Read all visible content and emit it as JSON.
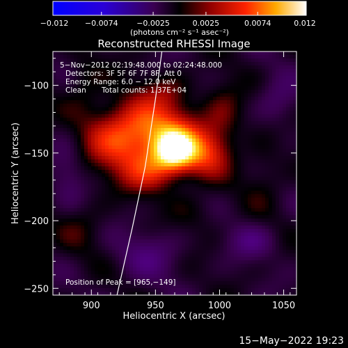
{
  "colorbar": {
    "ticks": [
      "−0.012",
      "−0.0074",
      "−0.0025",
      "0.0025",
      "0.0074",
      "0.012"
    ],
    "tick_values": [
      -0.012,
      -0.0074,
      -0.0025,
      0.0025,
      0.0074,
      0.012
    ],
    "range": [
      -0.012,
      0.012
    ],
    "units": "(photons cm⁻² s⁻¹ asec⁻²)"
  },
  "title": "Reconstructed RHESSI Image",
  "info": {
    "time": "5−Nov−2012 02:19:48.000 to 02:24:48.000",
    "detectors": "Detectors: 3F 5F 6F 7F 8F, Att 0",
    "energy": "Energy Range: 6.0 − 12.0 keV",
    "clean": "Clean",
    "counts": "Total counts: 1.37E+04"
  },
  "peak_label": "Position of Peak = [965,−149]",
  "footer_date": "15−May−2022 19:23",
  "chart_data": {
    "type": "heatmap",
    "xlabel": "Heliocentric X (arcsec)",
    "ylabel": "Heliocentric Y (arcsec)",
    "xlim": [
      870,
      1060
    ],
    "ylim": [
      -255,
      -75
    ],
    "xticks": [
      900,
      950,
      1000,
      1050
    ],
    "xtick_labels": [
      "900",
      "950",
      "1000",
      "1050"
    ],
    "yticks": [
      -100,
      -150,
      -200,
      -250
    ],
    "ytick_labels": [
      "−100",
      "−150",
      "−200",
      "−250"
    ],
    "peak": {
      "x": 965,
      "y": -149
    },
    "sources": [
      {
        "x": 965,
        "y": -149,
        "sx": 12,
        "sy": 11,
        "amp": 0.012
      },
      {
        "x": 952,
        "y": -132,
        "sx": 22,
        "sy": 16,
        "amp": 0.0065
      },
      {
        "x": 922,
        "y": -140,
        "sx": 20,
        "sy": 18,
        "amp": 0.0062
      },
      {
        "x": 990,
        "y": -150,
        "sx": 13,
        "sy": 13,
        "amp": 0.0055
      },
      {
        "x": 945,
        "y": -165,
        "sx": 15,
        "sy": 11,
        "amp": 0.0045
      },
      {
        "x": 1003,
        "y": -122,
        "sx": 11,
        "sy": 16,
        "amp": 0.003
      },
      {
        "x": 958,
        "y": -104,
        "sx": 13,
        "sy": 9,
        "amp": 0.0022
      },
      {
        "x": 895,
        "y": -96,
        "sx": 10,
        "sy": 16,
        "amp": 0.002
      },
      {
        "x": 1035,
        "y": -165,
        "sx": 11,
        "sy": 17,
        "amp": 0.0018
      },
      {
        "x": 892,
        "y": -205,
        "sx": 14,
        "sy": 13,
        "amp": 0.0017
      },
      {
        "x": 980,
        "y": -195,
        "sx": 13,
        "sy": 11,
        "amp": 0.0015
      },
      {
        "x": 1025,
        "y": -215,
        "sx": 13,
        "sy": 9,
        "amp": -0.003
      },
      {
        "x": 945,
        "y": -225,
        "sx": 18,
        "sy": 13,
        "amp": -0.0028
      },
      {
        "x": 1045,
        "y": -112,
        "sx": 11,
        "sy": 13,
        "amp": -0.0025
      },
      {
        "x": 882,
        "y": -165,
        "sx": 9,
        "sy": 20,
        "amp": -0.002
      }
    ],
    "limb": [
      [
        955,
        -75
      ],
      [
        950,
        -110
      ],
      [
        942,
        -160
      ],
      [
        932,
        -205
      ],
      [
        920,
        -255
      ]
    ]
  }
}
